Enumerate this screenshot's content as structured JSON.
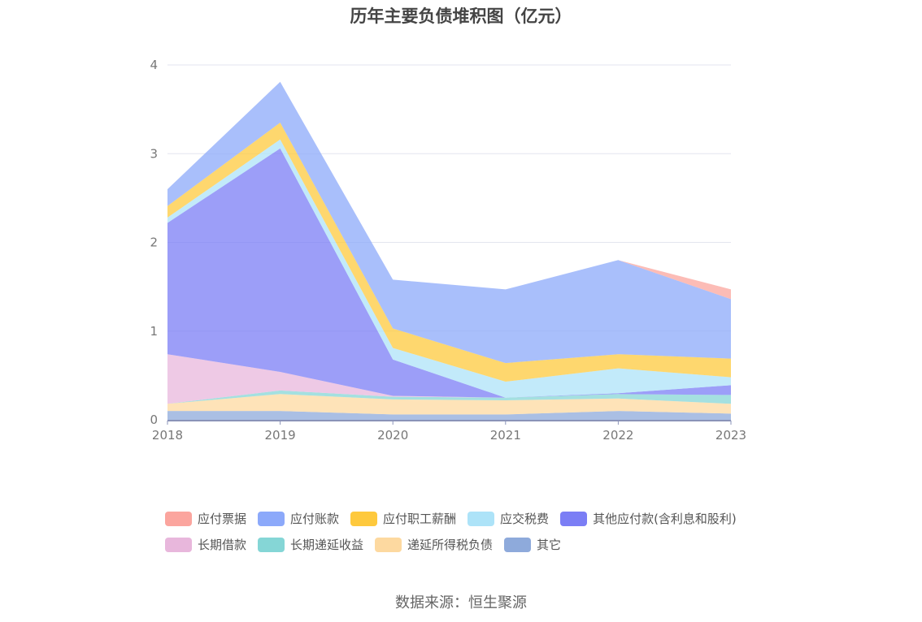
{
  "chart_data": {
    "type": "area",
    "stacked": true,
    "title": "历年主要负债堆积图（亿元）",
    "xlabel": "",
    "ylabel": "",
    "x": [
      "2018",
      "2019",
      "2020",
      "2021",
      "2022",
      "2023"
    ],
    "ylim": [
      0,
      4
    ],
    "yticks": [
      "0",
      "1",
      "2",
      "3",
      "4"
    ],
    "grid": true,
    "legend_position": "bottom",
    "series": [
      {
        "name": "其它",
        "color": "#8eaadb",
        "values": [
          0.1,
          0.1,
          0.06,
          0.06,
          0.1,
          0.07
        ]
      },
      {
        "name": "递延所得税负债",
        "color": "#fdd9a0",
        "values": [
          0.08,
          0.19,
          0.17,
          0.16,
          0.14,
          0.11
        ]
      },
      {
        "name": "长期递延收益",
        "color": "#85d6d6",
        "values": [
          0.0,
          0.04,
          0.03,
          0.03,
          0.05,
          0.1
        ]
      },
      {
        "name": "长期借款",
        "color": "#e8b7dc",
        "values": [
          0.56,
          0.21,
          0.01,
          0.0,
          0.0,
          0.0
        ]
      },
      {
        "name": "其他应付款(含利息和股利)",
        "color": "#7b7ef5",
        "values": [
          1.48,
          2.52,
          0.41,
          0.0,
          0.01,
          0.11
        ]
      },
      {
        "name": "应交税费",
        "color": "#ade3f8",
        "values": [
          0.06,
          0.1,
          0.13,
          0.18,
          0.28,
          0.09
        ]
      },
      {
        "name": "应付职工薪酬",
        "color": "#fec93d",
        "values": [
          0.13,
          0.19,
          0.22,
          0.21,
          0.16,
          0.21
        ]
      },
      {
        "name": "应付账款",
        "color": "#8ca9fa",
        "values": [
          0.19,
          0.46,
          0.55,
          0.83,
          1.06,
          0.67
        ]
      },
      {
        "name": "应付票据",
        "color": "#fba59e",
        "values": [
          0.0,
          0.0,
          0.0,
          0.0,
          0.0,
          0.11
        ]
      }
    ]
  },
  "legend": {
    "row1": [
      "应付票据",
      "应付账款",
      "应付职工薪酬",
      "应交税费",
      "其他应付款(含利息和股利)"
    ],
    "row2": [
      "长期借款",
      "长期递延收益",
      "递延所得税负债",
      "其它"
    ]
  },
  "source": "数据来源：恒生聚源"
}
